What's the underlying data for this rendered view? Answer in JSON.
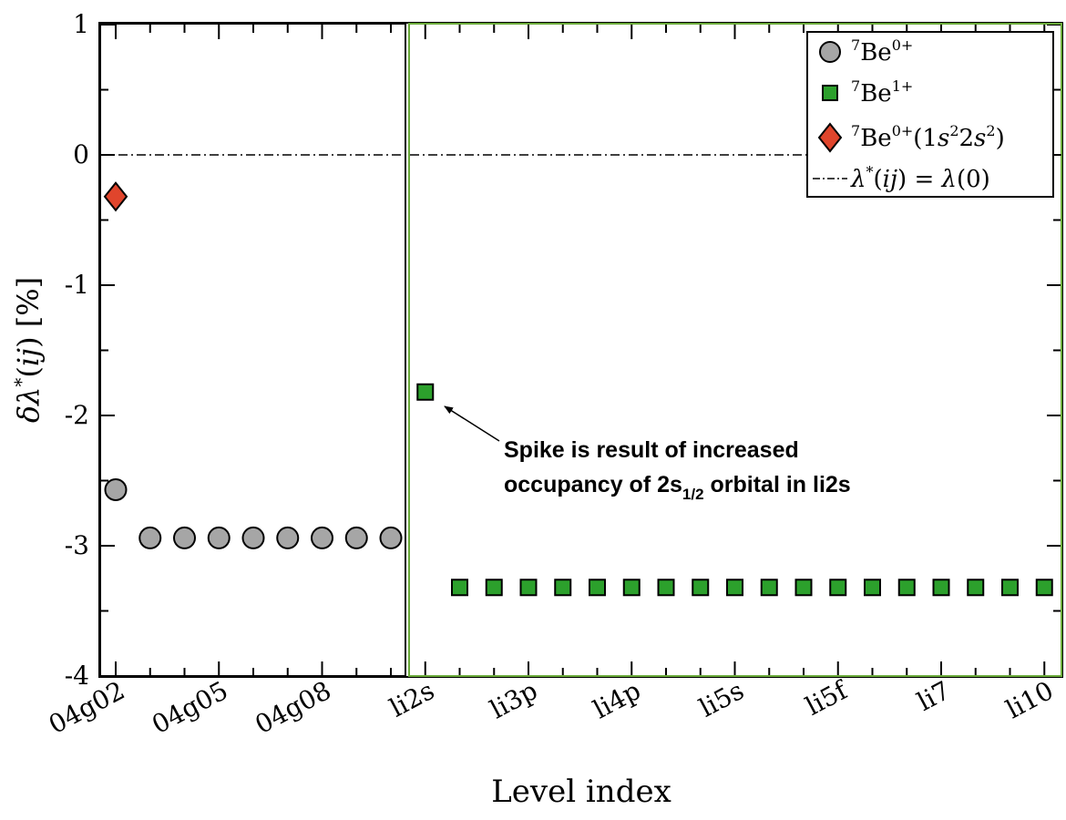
{
  "chart_data": {
    "type": "scatter",
    "xlabel": "Level index",
    "ylabel": "δλ*(ij) [%]",
    "ylim": [
      -4,
      1
    ],
    "yticks": [
      "1",
      "0",
      "-1",
      "-2",
      "-3",
      "-4"
    ],
    "x_tick_labels": [
      "04g02",
      "04g05",
      "04g08",
      "li2s",
      "li3p",
      "li4p",
      "li5s",
      "li5f",
      "li7",
      "li10"
    ],
    "series": [
      {
        "name": "7Be0+",
        "marker": "circle",
        "color": "#a6a6a6",
        "x": [
          1,
          2,
          3,
          4,
          5,
          6,
          7,
          8,
          9
        ],
        "values": [
          -2.57,
          -2.94,
          -2.94,
          -2.94,
          -2.94,
          -2.94,
          -2.94,
          -2.94,
          -2.94
        ]
      },
      {
        "name": "7Be1+",
        "marker": "square",
        "color": "#2ca02c",
        "x": [
          10,
          11,
          12,
          13,
          14,
          15,
          16,
          17,
          18,
          19,
          20,
          21,
          22,
          23,
          24,
          25,
          26,
          27,
          28
        ],
        "values": [
          -1.82,
          -3.32,
          -3.32,
          -3.32,
          -3.32,
          -3.32,
          -3.32,
          -3.32,
          -3.32,
          -3.32,
          -3.32,
          -3.32,
          -3.32,
          -3.32,
          -3.32,
          -3.32,
          -3.32,
          -3.32,
          -3.32
        ]
      },
      {
        "name": "7Be0+(1s22s2)",
        "marker": "diamond",
        "color": "#e0452c",
        "x": [
          1
        ],
        "values": [
          -0.32
        ]
      }
    ],
    "reference_line": {
      "name": "λ*(ij) = λ(0)",
      "value": 0
    },
    "legend": {
      "position": "top-right",
      "entries": [
        "7Be0+",
        "7Be1+",
        "7Be0+(1s22s2)",
        "λ*(ij) = λ(0)"
      ]
    },
    "annotation": {
      "line1": "Spike is result of increased",
      "line2_pre": "occupancy of 2s",
      "line2_sub": "1/2",
      "line2_post": " orbital in li2s"
    },
    "regions": [
      {
        "name": "Be0+ region",
        "color": "#000000"
      },
      {
        "name": "Be1+ region",
        "color": "#6aaa3a"
      }
    ]
  }
}
